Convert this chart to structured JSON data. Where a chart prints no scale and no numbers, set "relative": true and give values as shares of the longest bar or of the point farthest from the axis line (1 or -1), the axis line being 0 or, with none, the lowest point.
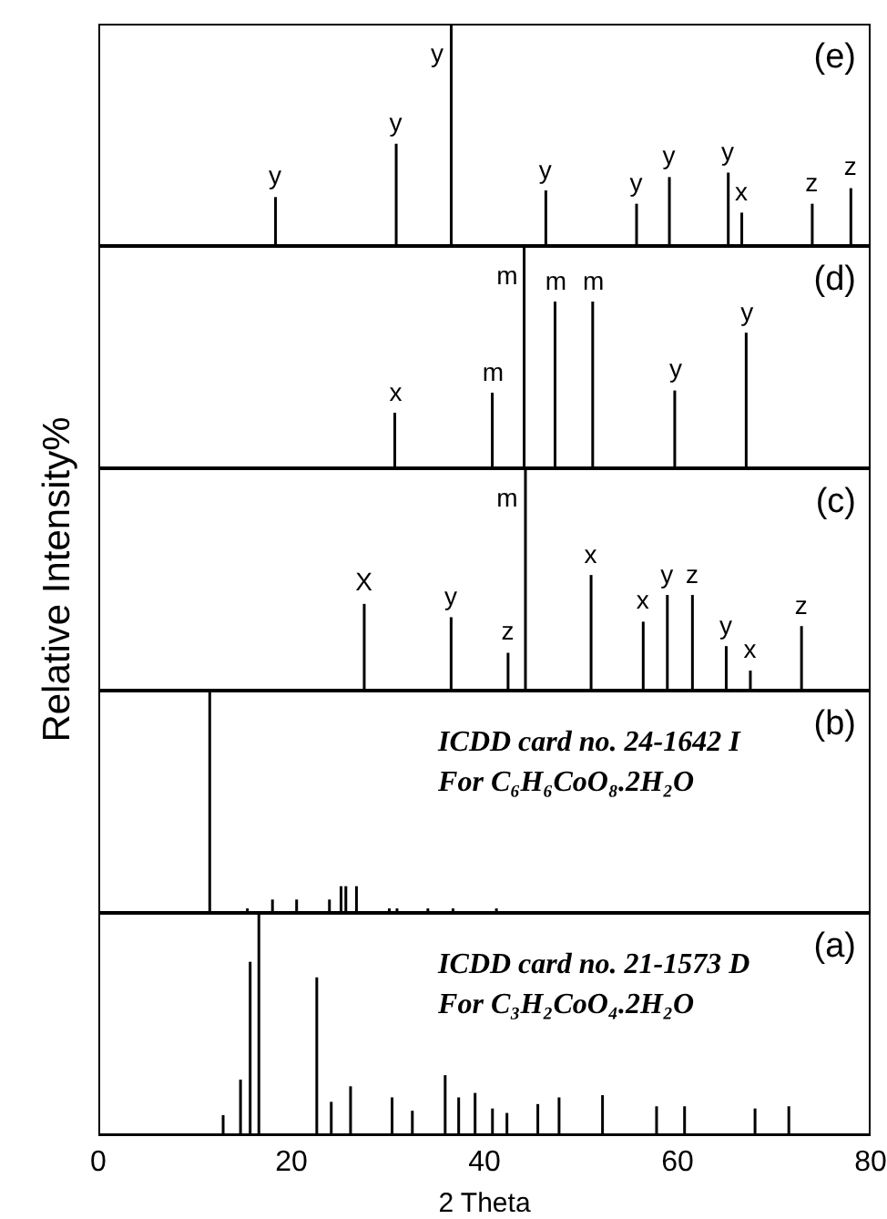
{
  "chart_data": [
    {
      "type": "bar",
      "relative": true,
      "color": "#000000",
      "xlim": [
        0,
        80
      ],
      "tick_labels": false,
      "x": [
        18.3,
        30.8,
        36.5,
        46.3,
        55.7,
        59.1,
        65.2,
        66.6,
        73.9,
        77.9
      ],
      "values": [
        0.22,
        0.46,
        1,
        0.25,
        0.19,
        0.31,
        0.33,
        0.15,
        0.19,
        0.26
      ],
      "annotations": [
        "(e)",
        {
          "text": "y",
          "x": 18.3,
          "y": 0.22
        },
        {
          "text": "y",
          "x": 30.8,
          "y": 0.46
        },
        {
          "text": "y",
          "x": 36.5,
          "y": 1
        },
        {
          "text": "y",
          "x": 46.3,
          "y": 0.25
        },
        {
          "text": "y",
          "x": 55.7,
          "y": 0.19
        },
        {
          "text": "y",
          "x": 59.1,
          "y": 0.31
        },
        {
          "text": "y",
          "x": 65.2,
          "y": 0.33
        },
        {
          "text": "x",
          "x": 66.6,
          "y": 0.15
        },
        {
          "text": "z",
          "x": 73.9,
          "y": 0.19
        },
        {
          "text": "z",
          "x": 77.9,
          "y": 0.26
        }
      ]
    },
    {
      "type": "bar",
      "relative": true,
      "color": "#000000",
      "xlim": [
        0,
        80
      ],
      "tick_labels": false,
      "x": [
        30.8,
        40.9,
        44.2,
        47.4,
        51.3,
        59.8,
        67.2
      ],
      "values": [
        0.25,
        0.34,
        1,
        0.75,
        0.75,
        0.35,
        0.61
      ],
      "annotations": [
        "(d)",
        {
          "text": "x",
          "x": 30.8,
          "y": 0.25
        },
        {
          "text": "m",
          "x": 40.9,
          "y": 0.34
        },
        {
          "text": "m",
          "x": 44.2,
          "y": 1
        },
        {
          "text": "m",
          "x": 47.4,
          "y": 0.75
        },
        {
          "text": "m",
          "x": 51.3,
          "y": 0.75
        },
        {
          "text": "y",
          "x": 59.8,
          "y": 0.35
        },
        {
          "text": "y",
          "x": 67.2,
          "y": 0.61
        }
      ]
    },
    {
      "type": "bar",
      "relative": true,
      "color": "#000000",
      "xlim": [
        0,
        80
      ],
      "tick_labels": false,
      "ylabel": "Relative Intensity%",
      "x": [
        27.5,
        36.5,
        42.4,
        44.2,
        51.0,
        56.4,
        58.9,
        61.5,
        65.0,
        67.5,
        72.8
      ],
      "values": [
        0.39,
        0.33,
        0.17,
        1,
        0.52,
        0.31,
        0.43,
        0.43,
        0.2,
        0.09,
        0.29
      ],
      "annotations": [
        "(c)",
        {
          "text": "X",
          "x": 27.5,
          "y": 0.39
        },
        {
          "text": "y",
          "x": 36.5,
          "y": 0.33
        },
        {
          "text": "z",
          "x": 42.4,
          "y": 0.17
        },
        {
          "text": "m",
          "x": 44.2,
          "y": 1
        },
        {
          "text": "x",
          "x": 51.0,
          "y": 0.52
        },
        {
          "text": "x",
          "x": 56.4,
          "y": 0.31
        },
        {
          "text": "y",
          "x": 58.9,
          "y": 0.43
        },
        {
          "text": "z",
          "x": 61.5,
          "y": 0.43
        },
        {
          "text": "y",
          "x": 65.0,
          "y": 0.2
        },
        {
          "text": "x",
          "x": 67.5,
          "y": 0.09
        },
        {
          "text": "z",
          "x": 72.8,
          "y": 0.29
        }
      ]
    },
    {
      "type": "bar",
      "relative": true,
      "color": "#000000",
      "xlim": [
        0,
        80
      ],
      "tick_labels": false,
      "x": [
        11.6,
        15.5,
        18.1,
        20.6,
        24.0,
        25.2,
        25.7,
        26.8,
        30.2,
        31.0,
        34.2,
        36.8,
        41.3
      ],
      "values": [
        1,
        0.02,
        0.06,
        0.06,
        0.06,
        0.12,
        0.12,
        0.12,
        0.02,
        0.02,
        0.02,
        0.02,
        0.02
      ],
      "annotations": [
        "(b)",
        "ICDD card no. 24-1642 I",
        "For C₆H₆CoO₈.2H₂O"
      ]
    },
    {
      "type": "bar",
      "relative": true,
      "color": "#000000",
      "xlim": [
        0,
        80
      ],
      "xticks": [
        0,
        20,
        40,
        60,
        80
      ],
      "tick_labels": "x",
      "xlabel": "2 Theta",
      "x": [
        13.0,
        14.8,
        15.8,
        16.7,
        22.7,
        24.2,
        26.2,
        30.5,
        32.6,
        36.0,
        37.4,
        39.1,
        40.9,
        42.4,
        45.6,
        47.8,
        52.3,
        57.9,
        60.8,
        68.1,
        71.6
      ],
      "values": [
        0.09,
        0.25,
        0.78,
        1,
        0.71,
        0.15,
        0.22,
        0.17,
        0.11,
        0.27,
        0.17,
        0.19,
        0.12,
        0.1,
        0.14,
        0.17,
        0.18,
        0.13,
        0.13,
        0.12,
        0.13
      ],
      "annotations": [
        "(a)",
        "ICDD card no. 21-1573 D",
        "For C₃H₂CoO₄.2H₂O"
      ]
    }
  ]
}
